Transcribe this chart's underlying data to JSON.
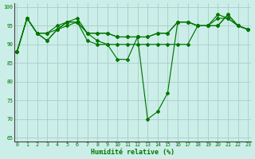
{
  "xlabel": "Humidité relative (%)",
  "background_color": "#cceee8",
  "grid_color": "#aacccc",
  "line_color": "#007700",
  "xlim": [
    -0.3,
    23.3
  ],
  "ylim": [
    64,
    101
  ],
  "yticks": [
    65,
    70,
    75,
    80,
    85,
    90,
    95,
    100
  ],
  "xticks": [
    0,
    1,
    2,
    3,
    4,
    5,
    6,
    7,
    8,
    9,
    10,
    11,
    12,
    13,
    14,
    15,
    16,
    17,
    18,
    19,
    20,
    21,
    22,
    23
  ],
  "series": [
    [
      88,
      97,
      93,
      93,
      94,
      96,
      97,
      93,
      93,
      93,
      92,
      92,
      92,
      92,
      93,
      93,
      96,
      96,
      95,
      95,
      98,
      97,
      95,
      94
    ],
    [
      88,
      97,
      93,
      93,
      95,
      96,
      96,
      93,
      93,
      93,
      92,
      92,
      92,
      92,
      93,
      93,
      96,
      96,
      95,
      95,
      97,
      97,
      95,
      94
    ],
    [
      88,
      97,
      93,
      91,
      94,
      96,
      96,
      93,
      91,
      90,
      90,
      90,
      90,
      90,
      90,
      90,
      90,
      90,
      95,
      95,
      95,
      98,
      95,
      94
    ],
    [
      88,
      97,
      93,
      91,
      94,
      95,
      96,
      91,
      90,
      90,
      86,
      86,
      92,
      70,
      72,
      77,
      96,
      96,
      95,
      95,
      95,
      98,
      95,
      94
    ]
  ]
}
